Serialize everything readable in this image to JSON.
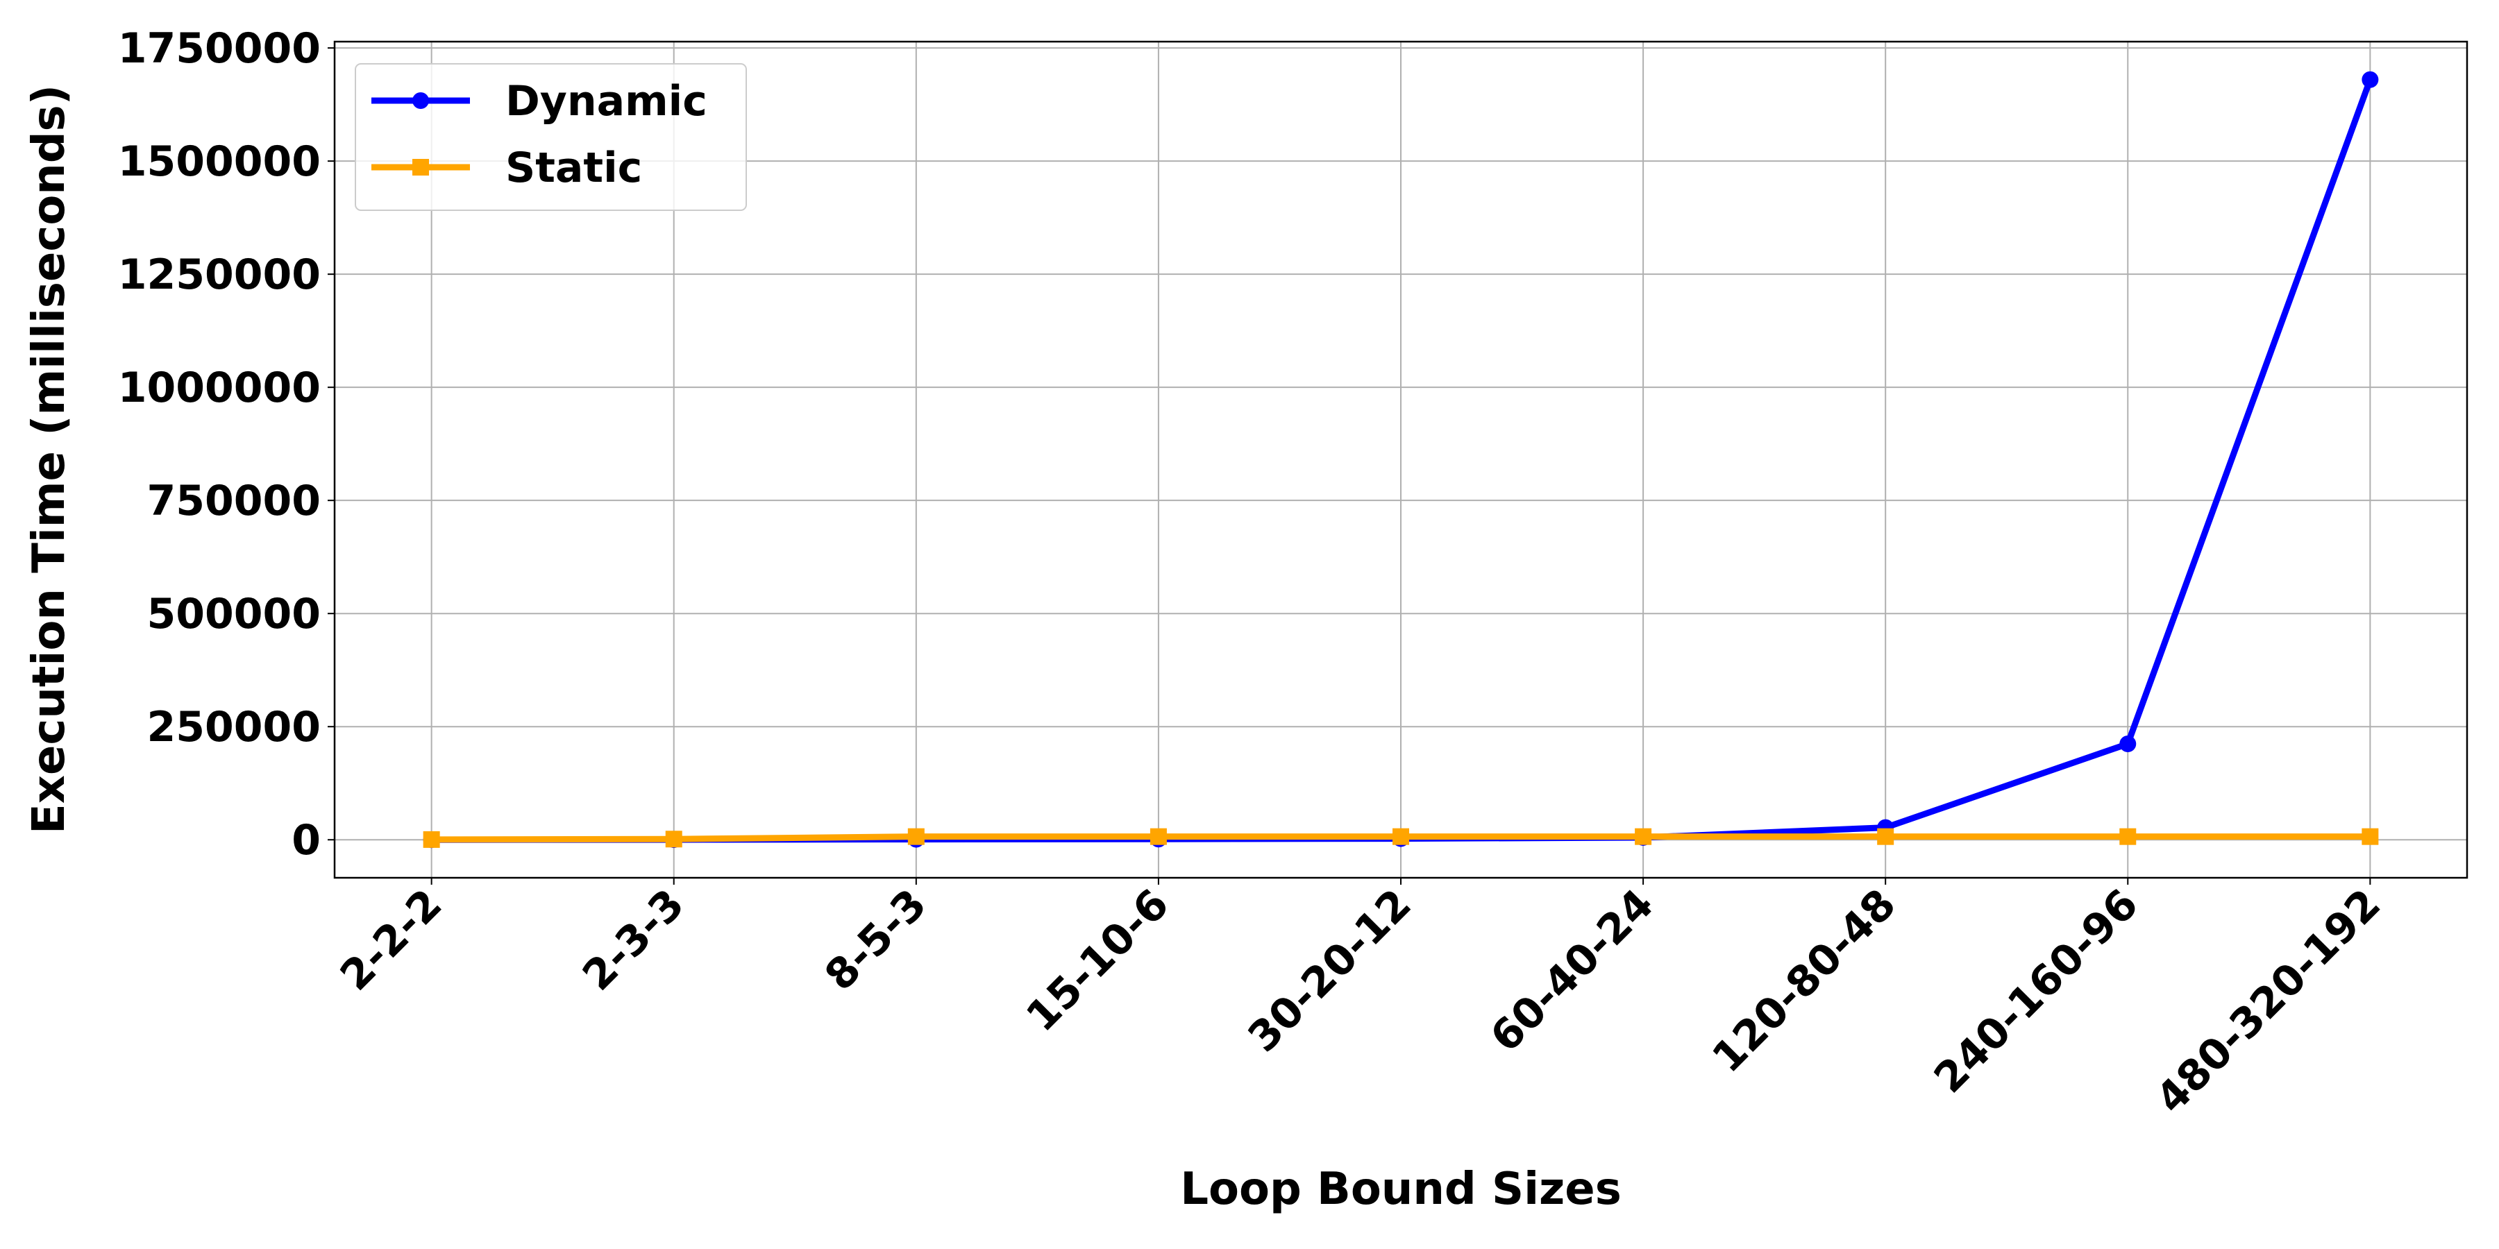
{
  "chart_data": {
    "type": "line",
    "xlabel": "Loop Bound Sizes",
    "ylabel": "Execution Time (milliseconds)",
    "categories": [
      "2-2-2",
      "2-3-3",
      "8-5-3",
      "15-10-6",
      "30-20-12",
      "60-40-24",
      "120-80-48",
      "240-160-96",
      "480-320-192"
    ],
    "series": [
      {
        "name": "Dynamic",
        "color": "#0000ff",
        "marker": "circle",
        "values": [
          50,
          200,
          1000,
          1500,
          2500,
          5000,
          27000,
          212000,
          1680000
        ]
      },
      {
        "name": "Static",
        "color": "#ffa500",
        "marker": "square",
        "values": [
          500,
          1500,
          7000,
          7000,
          7000,
          7000,
          7000,
          7000,
          7000
        ]
      }
    ],
    "ylim": [
      -84000,
      1764000
    ],
    "yticks": [
      0,
      250000,
      500000,
      750000,
      1000000,
      1250000,
      1500000,
      1750000
    ],
    "grid": true,
    "legend": "upper left"
  }
}
